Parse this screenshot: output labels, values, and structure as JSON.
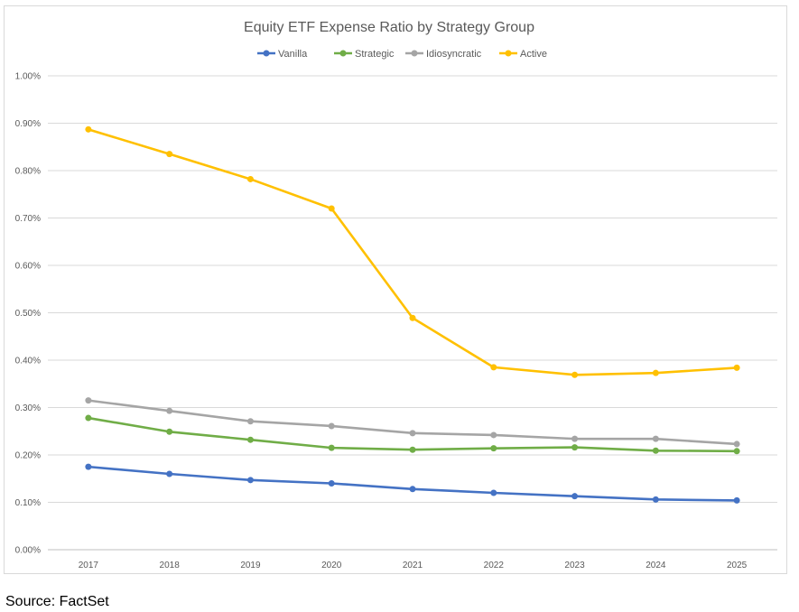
{
  "chart_data": {
    "type": "line",
    "title": "Equity ETF Expense Ratio by Strategy Group",
    "xlabel": "",
    "ylabel": "",
    "categories": [
      "2017",
      "2018",
      "2019",
      "2020",
      "2021",
      "2022",
      "2023",
      "2024",
      "2025"
    ],
    "ylim": [
      0,
      1.0
    ],
    "y_ticks": [
      "0.00%",
      "0.10%",
      "0.20%",
      "0.30%",
      "0.40%",
      "0.50%",
      "0.60%",
      "0.70%",
      "0.80%",
      "0.90%",
      "1.00%"
    ],
    "grid": true,
    "legend_position": "top",
    "series": [
      {
        "name": "Vanilla",
        "color": "#4472c4",
        "values": [
          0.175,
          0.16,
          0.147,
          0.14,
          0.128,
          0.12,
          0.113,
          0.106,
          0.104
        ]
      },
      {
        "name": "Strategic",
        "color": "#70ad47",
        "values": [
          0.278,
          0.249,
          0.232,
          0.215,
          0.211,
          0.214,
          0.216,
          0.209,
          0.208
        ]
      },
      {
        "name": "Idiosyncratic",
        "color": "#a5a5a5",
        "values": [
          0.315,
          0.293,
          0.271,
          0.261,
          0.246,
          0.242,
          0.234,
          0.234,
          0.223
        ]
      },
      {
        "name": "Active",
        "color": "#ffc000",
        "values": [
          0.887,
          0.835,
          0.782,
          0.72,
          0.489,
          0.385,
          0.369,
          0.373,
          0.384
        ]
      }
    ]
  },
  "source": "Source: FactSet"
}
